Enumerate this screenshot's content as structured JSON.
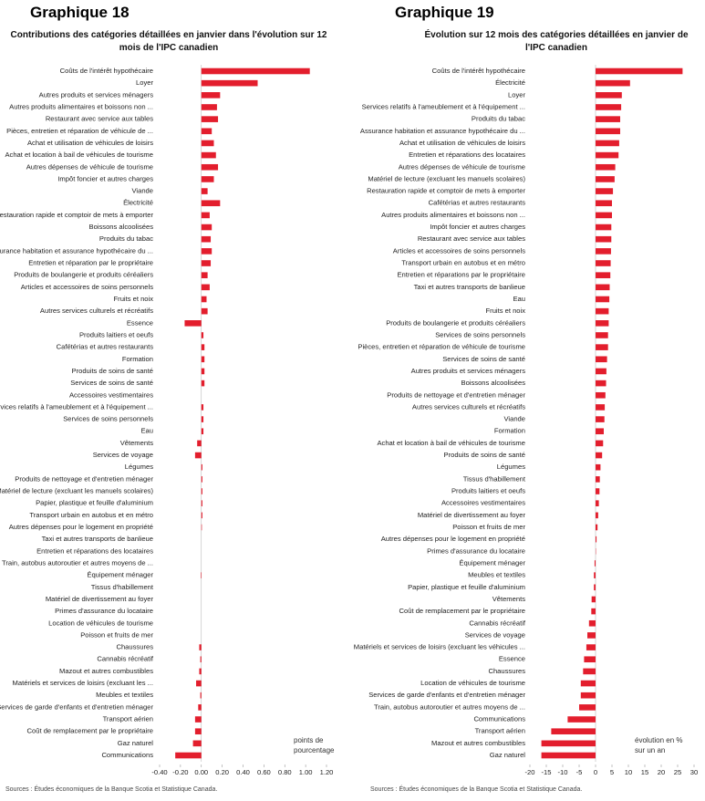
{
  "chart_data": [
    {
      "type": "barh",
      "heading": "Graphique 18",
      "title": "Contributions des catégories détaillées en janvier dans l'évolution sur 12 mois de l'IPC canadien",
      "annotation": "points de pourcentage",
      "source": "Sources : Études économiques de la Banque Scotia et Statistique Canada.",
      "color": "#e31e2d",
      "categories": [
        "Coûts de l'intérêt hypothécaire",
        "Loyer",
        "Autres produits et services ménagers",
        "Autres produits alimentaires et boissons non ...",
        "Restaurant avec service aux tables",
        "Pièces, entretien et réparation de véhicule de ...",
        "Achat et utilisation de véhicules de loisirs",
        "Achat et location à bail de véhicules de tourisme",
        "Autres dépenses de véhicule de tourisme",
        "Impôt foncier et autres charges",
        "Viande",
        "Électricité",
        "Restauration rapide et comptoir de mets à emporter",
        "Boissons alcoolisées",
        "Produits du tabac",
        "Assurance habitation et assurance hypothécaire du ...",
        "Entretien et réparation par le propriétaire",
        "Produits de boulangerie et produits céréaliers",
        "Articles et accessoires de soins personnels",
        "Fruits et noix",
        "Autres services culturels et récréatifs",
        "Essence",
        "Produits laitiers et oeufs",
        "Cafétérias et autres restaurants",
        "Formation",
        "Produits de soins de santé",
        "Services de soins de santé",
        "Accessoires vestimentaires",
        "Services relatifs à l'ameublement et à l'équipement ...",
        "Services de soins personnels",
        "Eau",
        "Vêtements",
        "Services de voyage",
        "Légumes",
        "Produits de nettoyage et d'entretien ménager",
        "Matériel de lecture (excluant les manuels scolaires)",
        "Papier, plastique et feuille d'aluminium",
        "Transport urbain en autobus et en métro",
        "Autres dépenses pour le logement en propriété",
        "Taxi et autres transports de banlieue",
        "Entretien et réparations des locataires",
        "Train, autobus autoroutier et autres moyens de ...",
        "Équipement ménager",
        "Tissus d'habillement",
        "Matériel de divertissement au foyer",
        "Primes d'assurance du locataire",
        "Location de véhicules de tourisme",
        "Poisson et fruits de mer",
        "Chaussures",
        "Cannabis récréatif",
        "Mazout et autres combustibles",
        "Matériels et services de loisirs (excluant les ...",
        "Meubles et textiles",
        "Services de garde d'enfants et d'entretien ménager",
        "Transport aérien",
        "Coût de remplacement par le propriétaire",
        "Gaz naturel",
        "Communications"
      ],
      "values": [
        1.04,
        0.54,
        0.18,
        0.15,
        0.16,
        0.1,
        0.12,
        0.14,
        0.16,
        0.12,
        0.06,
        0.18,
        0.08,
        0.1,
        0.09,
        0.1,
        0.09,
        0.06,
        0.08,
        0.05,
        0.06,
        -0.16,
        0.02,
        0.03,
        0.03,
        0.03,
        0.03,
        0.0,
        0.02,
        0.02,
        0.02,
        -0.04,
        -0.06,
        0.01,
        0.01,
        0.01,
        0.01,
        0.01,
        0.005,
        0.0,
        0.0,
        0.0,
        -0.005,
        0.0,
        0.0,
        0.0,
        0.0,
        0.0,
        -0.02,
        -0.01,
        -0.02,
        -0.05,
        -0.01,
        -0.03,
        -0.06,
        -0.06,
        -0.08,
        -0.25
      ],
      "xlim": [
        -0.4,
        1.2
      ],
      "xticks": [
        {
          "value": -0.4,
          "label": "-0.40"
        },
        {
          "value": -0.2,
          "label": "-0.20"
        },
        {
          "value": 0,
          "label": "0.00"
        },
        {
          "value": 0.2,
          "label": "0.20"
        },
        {
          "value": 0.4,
          "label": "0.40"
        },
        {
          "value": 0.6,
          "label": "0.60"
        },
        {
          "value": 0.8,
          "label": "0.80"
        },
        {
          "value": 1,
          "label": "1.00"
        },
        {
          "value": 1.2,
          "label": "1.20"
        }
      ]
    },
    {
      "type": "barh",
      "heading": "Graphique 19",
      "title": "Évolution sur 12 mois des catégories détaillées en janvier de l'IPC canadien",
      "annotation": "évolution en % sur un an",
      "source": "Sources : Études économiques de la Banque Scotia et Statistique Canada.",
      "color": "#e31e2d",
      "categories": [
        "Coûts de l'intérêt hypothécaire",
        "Électricité",
        "Loyer",
        "Services relatifs à l'ameublement et à l'équipement ...",
        "Produits du tabac",
        "Assurance habitation et assurance hypothécaire du ...",
        "Achat et utilisation de véhicules de loisirs",
        "Entretien et réparations des locataires",
        "Autres dépenses de véhicule de tourisme",
        "Matériel de lecture (excluant les manuels scolaires)",
        "Restauration rapide et comptoir de mets à emporter",
        "Cafétérias et autres restaurants",
        "Autres produits alimentaires et boissons non ...",
        "Impôt foncier et autres charges",
        "Restaurant avec service aux tables",
        "Articles et accessoires de soins personnels",
        "Transport urbain en autobus et en métro",
        "Entretien et réparations par le propriétaire",
        "Taxi et autres transports de banlieue",
        "Eau",
        "Fruits et noix",
        "Produits de boulangerie et produits céréaliers",
        "Services de soins personnels",
        "Pièces, entretien et réparation de véhicule de tourisme",
        "Services de soins de santé",
        "Autres produits et services ménagers",
        "Boissons alcoolisées",
        "Produits de nettoyage et d'entretien ménager",
        "Autres services culturels et récréatifs",
        "Viande",
        "Formation",
        "Achat et location à bail de véhicules de tourisme",
        "Produits de soins de santé",
        "Légumes",
        "Tissus d'habillement",
        "Produits laitiers et oeufs",
        "Accessoires vestimentaires",
        "Matériel de divertissement au foyer",
        "Poisson et fruits de mer",
        "Autres dépenses pour le logement en propriété",
        "Primes d'assurance du locataire",
        "Équipement ménager",
        "Meubles et textiles",
        "Papier, plastique et feuille d'aluminium",
        "Vêtements",
        "Coût de remplacement par le propriétaire",
        "Cannabis récréatif",
        "Services de voyage",
        "Matériels et services de loisirs (excluant les véhicules ...",
        "Essence",
        "Chaussures",
        "Location de véhicules de tourisme",
        "Services de garde d'enfants et d'entretien ménager",
        "Train, autobus autoroutier et autres moyens de ...",
        "Communications",
        "Transport aérien",
        "Mazout et autres combustibles",
        "Gaz naturel"
      ],
      "values": [
        26.5,
        10.5,
        8,
        7.8,
        7.5,
        7.5,
        7.2,
        7,
        6,
        5.8,
        5.3,
        5,
        5,
        4.8,
        4.8,
        4.7,
        4.6,
        4.5,
        4.3,
        4.2,
        4,
        4,
        3.8,
        3.8,
        3.5,
        3.3,
        3.2,
        3,
        2.8,
        2.7,
        2.5,
        2.3,
        2,
        1.5,
        1.3,
        1.2,
        1,
        0.8,
        0.6,
        0.3,
        0.1,
        -0.3,
        -0.5,
        -0.5,
        -1.2,
        -1.3,
        -2,
        -2.5,
        -2.8,
        -3.5,
        -3.8,
        -4.5,
        -4.5,
        -5,
        -8.5,
        -13.5,
        -16.5,
        -16.5
      ],
      "xlim": [
        -20,
        30
      ],
      "xticks": [
        -20,
        -15,
        -10,
        -5,
        0,
        5,
        10,
        15,
        20,
        25,
        30
      ]
    }
  ]
}
